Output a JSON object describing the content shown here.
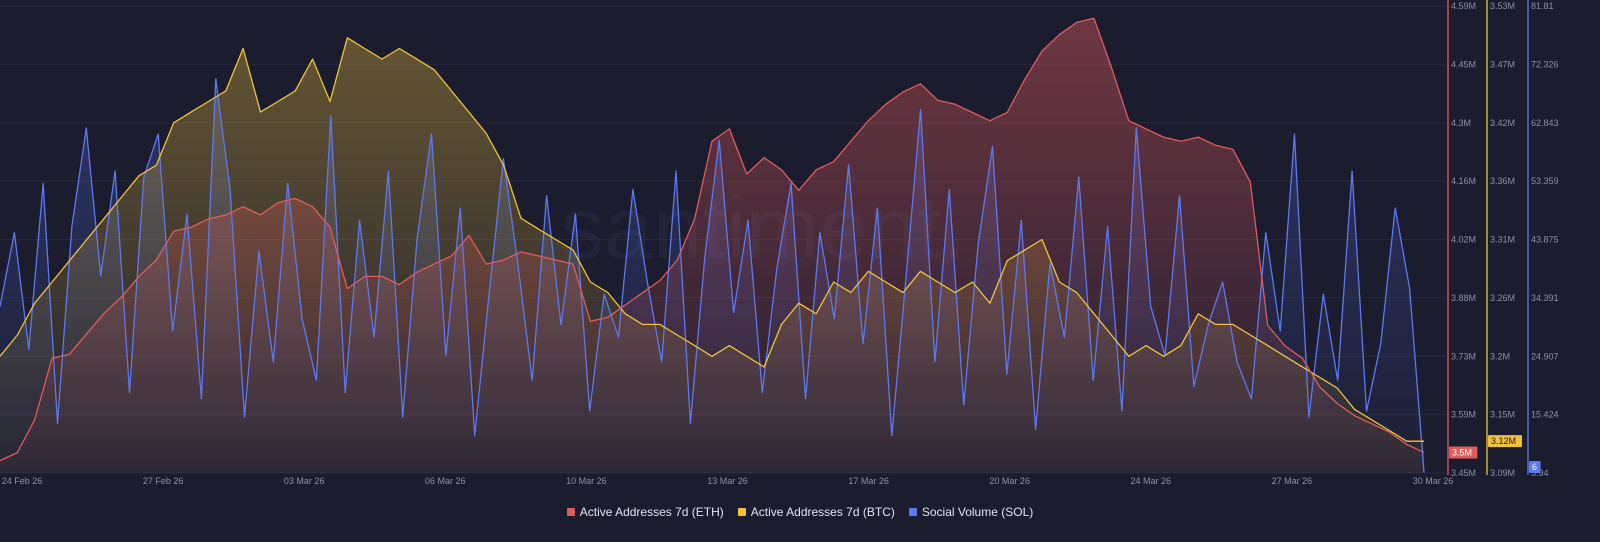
{
  "watermark": "santiment.",
  "legend": [
    {
      "label": "Active Addresses 7d (ETH)",
      "color": "#e05c5c"
    },
    {
      "label": "Active Addresses 7d (BTC)",
      "color": "#f0c23a"
    },
    {
      "label": "Social Volume (SOL)",
      "color": "#5c79f0"
    }
  ],
  "chart_data": {
    "type": "line",
    "x_labels": [
      "24 Feb 26",
      "27 Feb 26",
      "03 Mar 26",
      "06 Mar 26",
      "10 Mar 26",
      "13 Mar 26",
      "17 Mar 26",
      "20 Mar 26",
      "24 Mar 26",
      "27 Mar 26",
      "30 Mar 26"
    ],
    "axes": [
      {
        "id": "eth",
        "color": "#e05c5c",
        "ticks": [
          "4.59M",
          "4.45M",
          "4.3M",
          "4.16M",
          "4.02M",
          "3.88M",
          "3.73M",
          "3.59M",
          "3.45M"
        ],
        "ylim": [
          3450000,
          4590000
        ],
        "current": "3.5M"
      },
      {
        "id": "btc",
        "color": "#f0c23a",
        "ticks": [
          "3.53M",
          "3.47M",
          "3.42M",
          "3.36M",
          "3.31M",
          "3.26M",
          "3.2M",
          "3.15M",
          "3.09M"
        ],
        "ylim": [
          3090000,
          3530000
        ],
        "current": "3.12M"
      },
      {
        "id": "sol",
        "color": "#5c79f0",
        "ticks": [
          "81.81",
          "72.326",
          "62.843",
          "53.359",
          "43.875",
          "34.391",
          "24.907",
          "15.424",
          "5.94"
        ],
        "ylim": [
          5.94,
          81.81
        ],
        "current": "6"
      }
    ],
    "series": [
      {
        "name": "Active Addresses 7d (ETH)",
        "axis": "eth",
        "color": "#e05c5c",
        "values": [
          3.48,
          3.5,
          3.58,
          3.73,
          3.74,
          3.79,
          3.84,
          3.88,
          3.93,
          3.97,
          4.04,
          4.05,
          4.07,
          4.08,
          4.1,
          4.08,
          4.11,
          4.12,
          4.1,
          4.05,
          3.9,
          3.93,
          3.93,
          3.91,
          3.94,
          3.96,
          3.98,
          4.03,
          3.96,
          3.97,
          3.99,
          3.98,
          3.97,
          3.96,
          3.82,
          3.83,
          3.86,
          3.89,
          3.92,
          3.97,
          4.07,
          4.26,
          4.29,
          4.18,
          4.22,
          4.19,
          4.14,
          4.19,
          4.21,
          4.26,
          4.31,
          4.35,
          4.38,
          4.4,
          4.36,
          4.35,
          4.33,
          4.31,
          4.33,
          4.41,
          4.48,
          4.52,
          4.55,
          4.56,
          4.44,
          4.31,
          4.29,
          4.27,
          4.26,
          4.27,
          4.25,
          4.24,
          4.16,
          3.81,
          3.76,
          3.73,
          3.66,
          3.62,
          3.59,
          3.57,
          3.55,
          3.52,
          3.5
        ],
        "legend_last": "3.5M"
      },
      {
        "name": "Active Addresses 7d (BTC)",
        "axis": "btc",
        "color": "#f0c23a",
        "values": [
          3.2,
          3.22,
          3.25,
          3.27,
          3.29,
          3.31,
          3.33,
          3.35,
          3.37,
          3.38,
          3.42,
          3.43,
          3.44,
          3.45,
          3.49,
          3.43,
          3.44,
          3.45,
          3.48,
          3.44,
          3.5,
          3.49,
          3.48,
          3.49,
          3.48,
          3.47,
          3.45,
          3.43,
          3.41,
          3.38,
          3.33,
          3.32,
          3.31,
          3.3,
          3.27,
          3.26,
          3.24,
          3.23,
          3.23,
          3.22,
          3.21,
          3.2,
          3.21,
          3.2,
          3.19,
          3.23,
          3.25,
          3.24,
          3.27,
          3.26,
          3.28,
          3.27,
          3.26,
          3.28,
          3.27,
          3.26,
          3.27,
          3.25,
          3.29,
          3.3,
          3.31,
          3.27,
          3.26,
          3.24,
          3.22,
          3.2,
          3.21,
          3.2,
          3.21,
          3.24,
          3.23,
          3.23,
          3.22,
          3.21,
          3.2,
          3.19,
          3.18,
          3.17,
          3.15,
          3.14,
          3.13,
          3.12,
          3.12
        ],
        "legend_last": "3.12M"
      },
      {
        "name": "Social Volume (SOL)",
        "axis": "sol",
        "color": "#5c79f0",
        "values": [
          33,
          45,
          26,
          53,
          14,
          46,
          62,
          38,
          55,
          19,
          54,
          61,
          29,
          48,
          18,
          70,
          52,
          15,
          42,
          24,
          53,
          31,
          21,
          64,
          19,
          47,
          28,
          55,
          15,
          44,
          61,
          25,
          49,
          12,
          35,
          57,
          40,
          21,
          51,
          30,
          48,
          16,
          35,
          28,
          52,
          37,
          24,
          55,
          14,
          41,
          60,
          32,
          47,
          19,
          39,
          53,
          18,
          45,
          31,
          56,
          27,
          49,
          12,
          38,
          65,
          24,
          52,
          17,
          43,
          59,
          22,
          47,
          13,
          40,
          28,
          54,
          21,
          46,
          16,
          62,
          33,
          25,
          51,
          20,
          30,
          37,
          24,
          18,
          45,
          29,
          61,
          15,
          35,
          21,
          55,
          16,
          27,
          49,
          36,
          6
        ],
        "last": "6"
      }
    ]
  }
}
